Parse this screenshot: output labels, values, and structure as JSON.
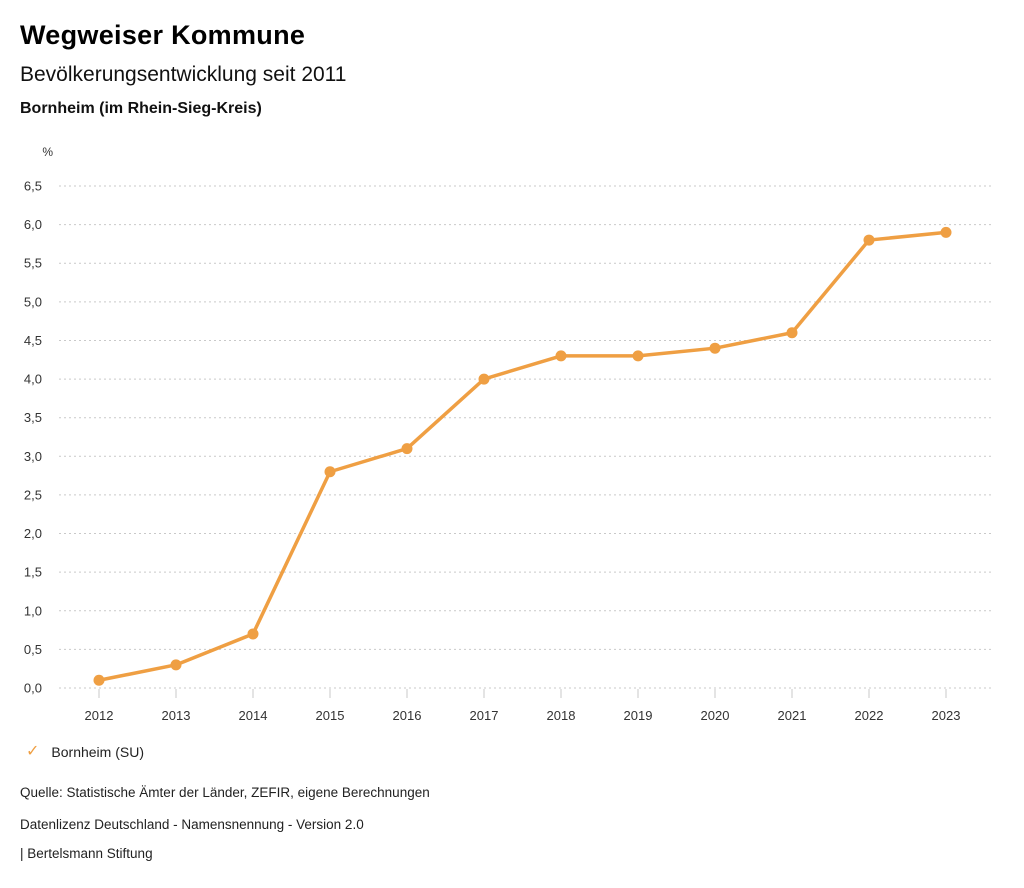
{
  "header": {
    "title": "Wegweiser Kommune",
    "subtitle": "Bevölkerungsentwicklung seit 2011",
    "region": "Bornheim (im Rhein-Sieg-Kreis)"
  },
  "chart_data": {
    "type": "line",
    "title": "Bevölkerungsentwicklung seit 2011",
    "unit_label": "%",
    "categories": [
      "2012",
      "2013",
      "2014",
      "2015",
      "2016",
      "2017",
      "2018",
      "2019",
      "2020",
      "2021",
      "2022",
      "2023"
    ],
    "series": [
      {
        "name": "Bornheim (SU)",
        "color": "#EF9F43",
        "values": [
          0.1,
          0.3,
          0.7,
          2.8,
          3.1,
          4.0,
          4.3,
          4.3,
          4.4,
          4.6,
          5.8,
          5.9
        ]
      }
    ],
    "ylim": [
      0,
      6.5
    ],
    "ytick_step": 0.5,
    "ytick_format": "comma-decimal",
    "grid": "horizontal-dotted",
    "grid_color": "#c9c9c9",
    "legend_position": "bottom-left"
  },
  "legend": {
    "check_icon": "✓",
    "label": "Bornheim (SU)"
  },
  "footer": {
    "source": "Quelle: Statistische Ämter der Länder, ZEFIR, eigene Berechnungen",
    "license": "Datenlizenz Deutschland - Namensnennung - Version 2.0",
    "attribution": "| Bertelsmann Stiftung"
  }
}
